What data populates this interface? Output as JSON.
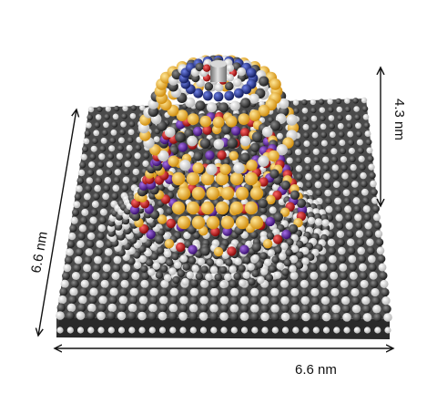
{
  "figure": {
    "dimension_right": "4.3 nm",
    "dimension_left": "6.6 nm",
    "dimension_bottom": "6.6 nm"
  },
  "colors": {
    "carbon": "#3a3a3a",
    "hydrogen": "#f4f4f4",
    "gold_atom": "#f2b632",
    "red_atom": "#c81818",
    "purple_atom": "#6a2aa8",
    "blue_atom": "#2a3a9a",
    "rod": "#a8a8a8"
  }
}
